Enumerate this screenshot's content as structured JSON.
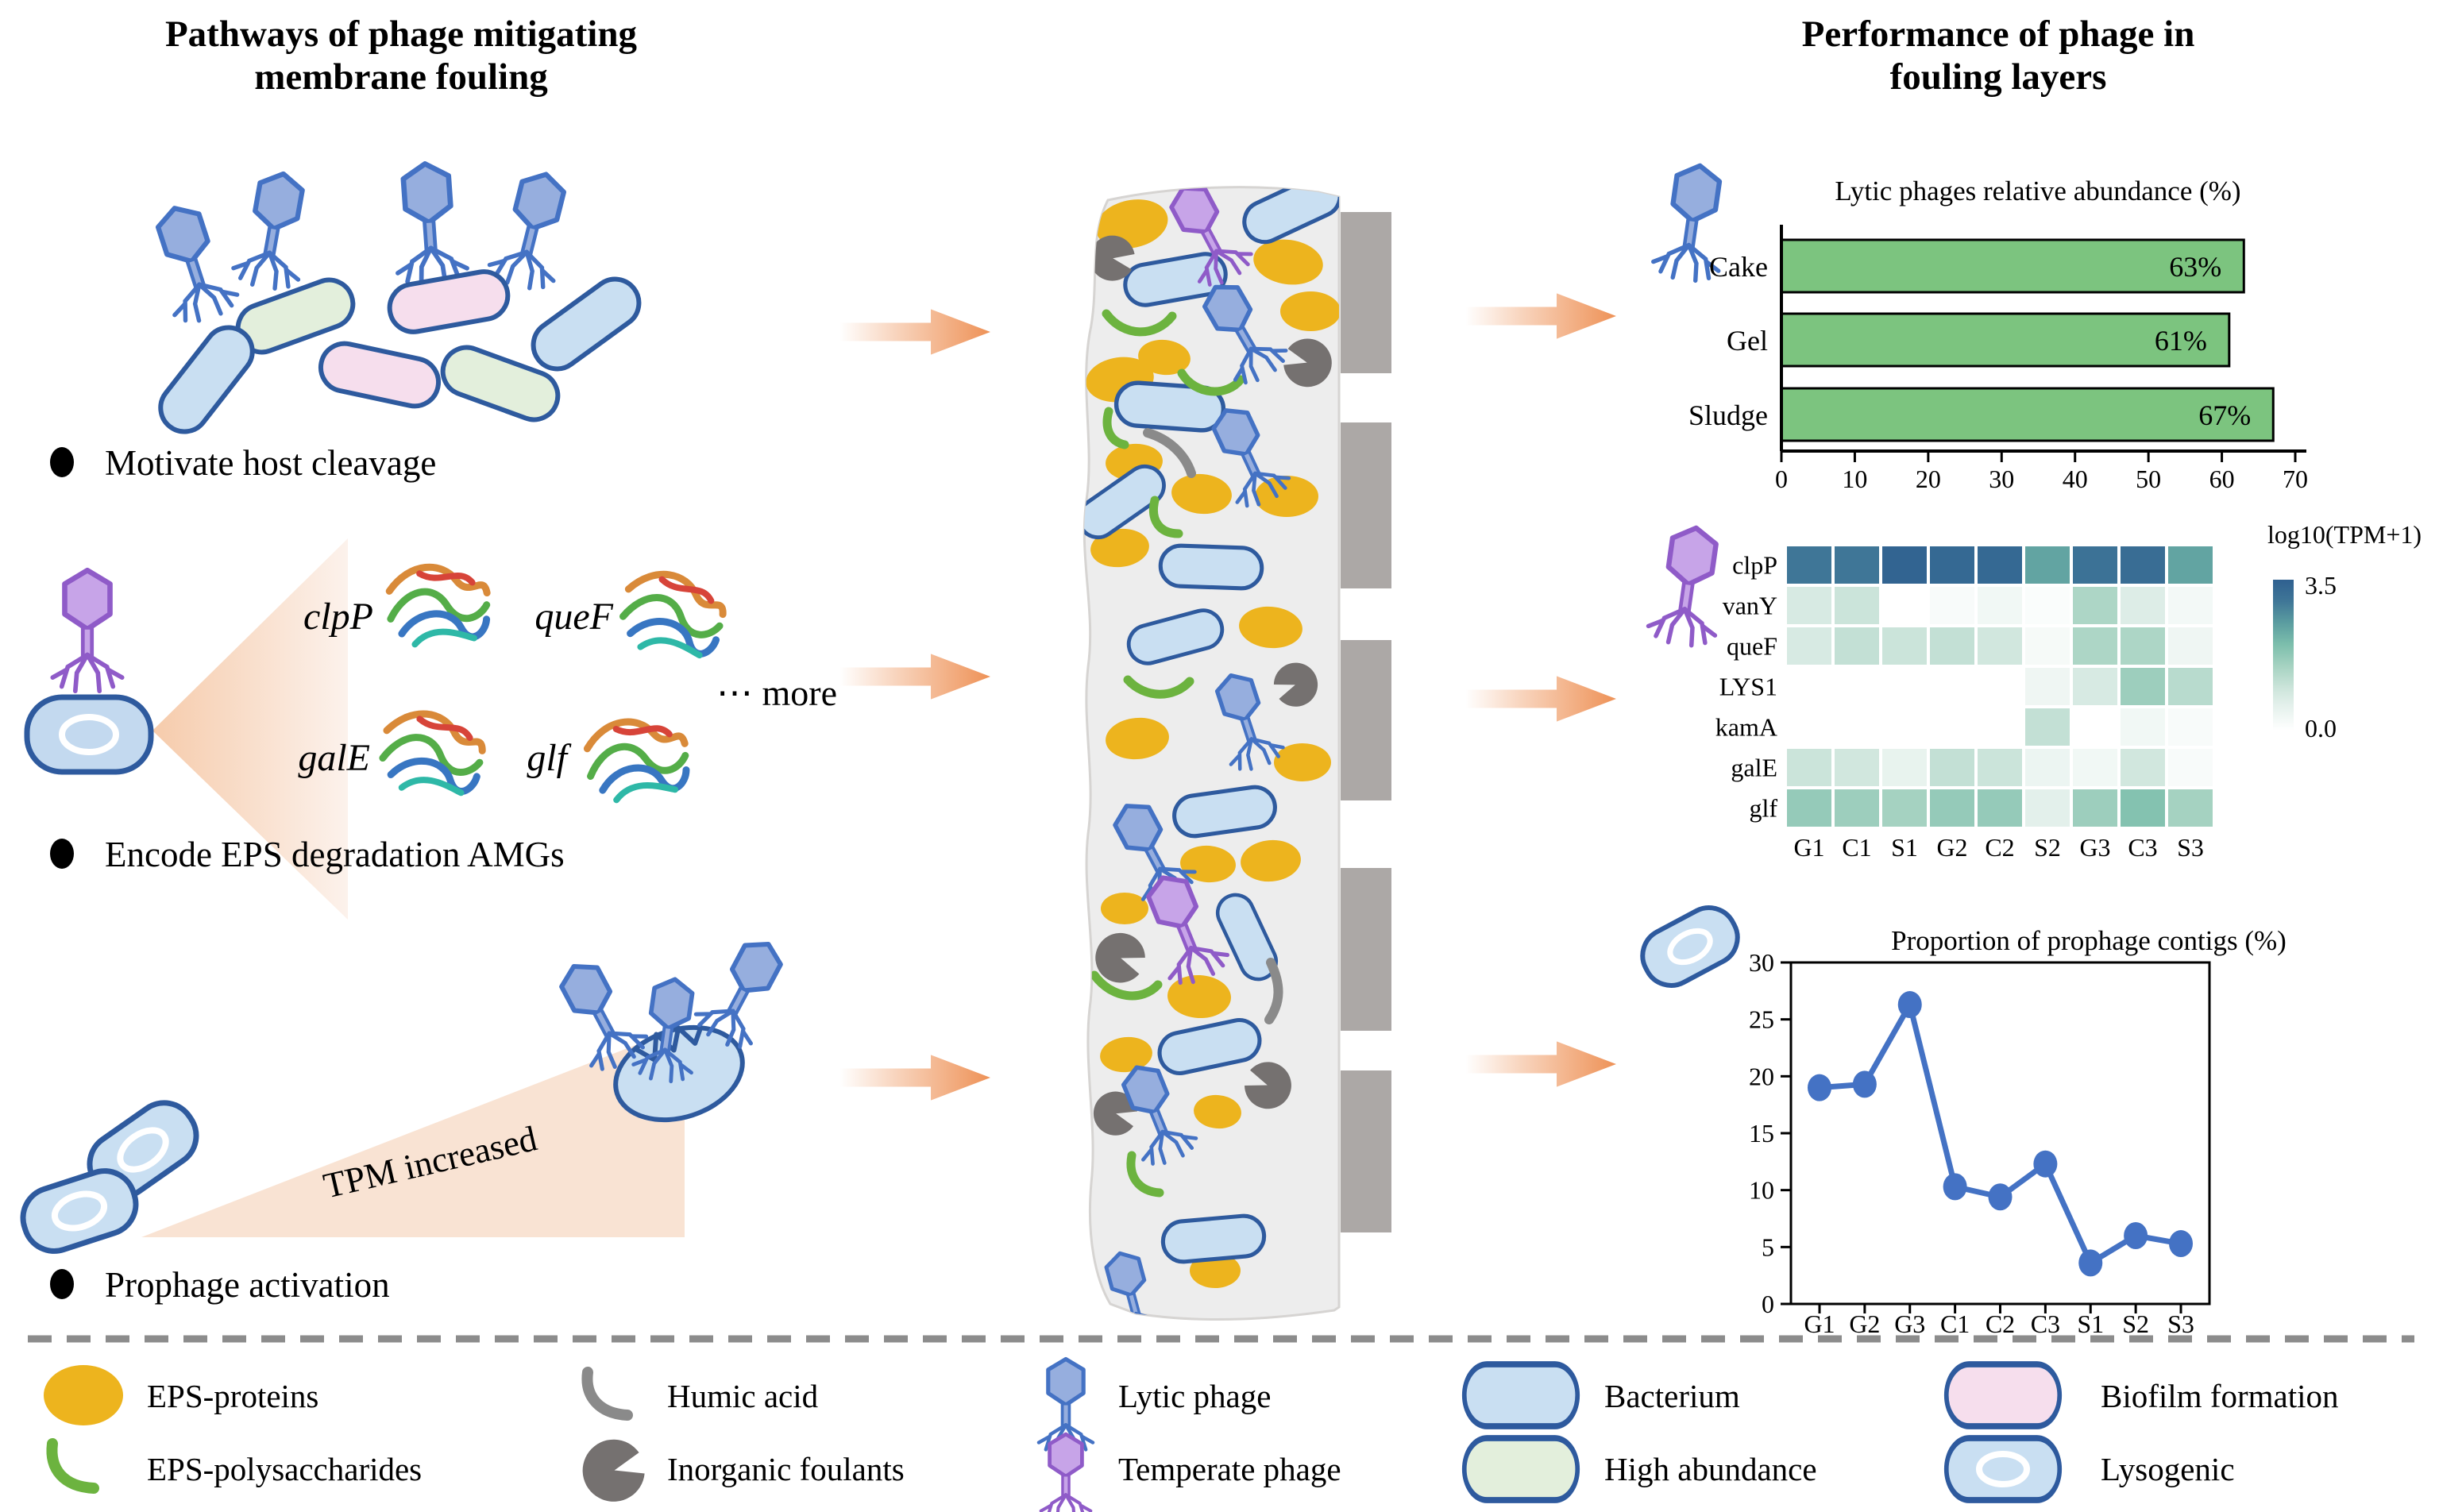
{
  "left_panel": {
    "title_line1": "Pathways of phage mitigating",
    "title_line2": "membrane fouling",
    "bullet_1": "Motivate host cleavage",
    "bullet_2": "Encode EPS degradation AMGs",
    "bullet_3": "Prophage activation",
    "amg_genes": [
      "clpP",
      "queF",
      "galE",
      "glf"
    ],
    "more_label": "⋯ more",
    "tpm_label": "TPM increased"
  },
  "right_panel": {
    "title_line1": "Performance of phage in",
    "title_line2": "fouling layers"
  },
  "legend": {
    "items": [
      {
        "icon": "eps-protein-icon",
        "label": "EPS-proteins"
      },
      {
        "icon": "eps-polysaccharide-icon",
        "label": "EPS-polysaccharides"
      },
      {
        "icon": "humic-acid-icon",
        "label": "Humic acid"
      },
      {
        "icon": "inorganic-foulant-icon",
        "label": "Inorganic foulants"
      },
      {
        "icon": "lytic-phage-icon",
        "label": "Lytic phage"
      },
      {
        "icon": "temperate-phage-icon",
        "label": "Temperate phage"
      },
      {
        "icon": "bacterium-icon",
        "label": "Bacterium"
      },
      {
        "icon": "high-abundance-icon",
        "label": "High abundance"
      },
      {
        "icon": "biofilm-formation-icon",
        "label": "Biofilm formation"
      },
      {
        "icon": "lysogenic-icon",
        "label": "Lysogenic"
      }
    ]
  },
  "chart_data": [
    {
      "id": "lytic_abundance",
      "type": "bar",
      "orientation": "horizontal",
      "title": "Lytic phages relative abundance (%)",
      "categories": [
        "Cake",
        "Gel",
        "Sludge"
      ],
      "values": [
        63,
        61,
        67
      ],
      "value_labels": [
        "63%",
        "61%",
        "67%"
      ],
      "xlim": [
        0,
        70
      ],
      "xticks": [
        0,
        10,
        20,
        30,
        40,
        50,
        60,
        70
      ],
      "bar_color": "#7cc47f",
      "bar_border": "#000000"
    },
    {
      "id": "amg_heatmap",
      "type": "heatmap",
      "colorbar_title": "log10(TPM+1)",
      "colorbar_max": "3.5",
      "colorbar_min": "0.0",
      "rows": [
        "clpP",
        "vanY",
        "queF",
        "LYS1",
        "kamA",
        "galE",
        "glf"
      ],
      "cols": [
        "G1",
        "C1",
        "S1",
        "G2",
        "C2",
        "S2",
        "G3",
        "C3",
        "S3"
      ],
      "vmin": 0.0,
      "vmax": 3.5,
      "values": [
        [
          3.0,
          3.0,
          3.4,
          3.3,
          3.3,
          2.4,
          3.1,
          3.2,
          2.4
        ],
        [
          0.8,
          1.0,
          0.0,
          0.15,
          0.3,
          0.1,
          1.4,
          0.7,
          0.25
        ],
        [
          0.8,
          1.1,
          1.0,
          1.1,
          0.9,
          0.2,
          1.4,
          1.4,
          0.35
        ],
        [
          0.0,
          0.0,
          0.0,
          0.0,
          0.0,
          0.35,
          0.8,
          1.6,
          1.25
        ],
        [
          0.0,
          0.0,
          0.0,
          0.0,
          0.0,
          1.1,
          0.0,
          0.3,
          0.15
        ],
        [
          1.0,
          0.9,
          0.5,
          1.1,
          1.0,
          0.4,
          0.3,
          0.9,
          0.15
        ],
        [
          1.7,
          1.6,
          1.5,
          1.7,
          1.7,
          0.6,
          1.6,
          1.9,
          1.5
        ]
      ]
    },
    {
      "id": "prophage_contigs",
      "type": "line",
      "title": "Proportion of prophage contigs (%)",
      "x": [
        "G1",
        "G2",
        "G3",
        "C1",
        "C2",
        "C3",
        "S1",
        "S2",
        "S3"
      ],
      "y": [
        19.0,
        19.3,
        26.3,
        10.3,
        9.4,
        12.3,
        3.6,
        6.0,
        5.3
      ],
      "ylim": [
        0,
        30
      ],
      "yticks": [
        0,
        5,
        10,
        15,
        20,
        25,
        30
      ],
      "line_color": "#4472c4"
    }
  ],
  "colors": {
    "arrow_orange": "#ed8c4e",
    "eps_protein_yellow": "#edb41e",
    "eps_polysaccharide_green": "#6cb33f",
    "humic_acid_gray": "#8a8a8a",
    "inorganic_foulant_gray": "#757170",
    "lytic_phage_blue": "#4472c4",
    "temperate_phage_purple": "#9163cb",
    "bacterium_fill": "#c9dff2",
    "bacterium_stroke": "#2e5a9e",
    "high_abundance_fill": "#e3efdc",
    "biofilm_fill": "#f6deed",
    "membrane_gray": "#aca8a6",
    "fouling_layer_fill": "#ededed"
  }
}
